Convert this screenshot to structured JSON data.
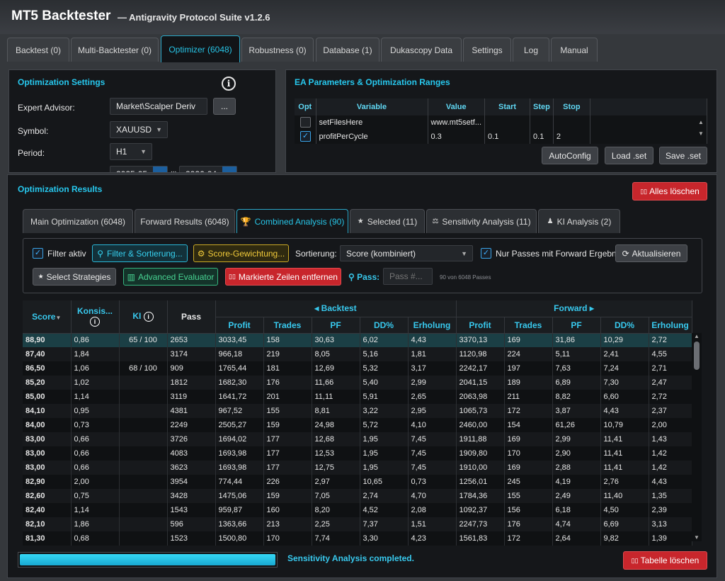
{
  "app": {
    "title": "MT5 Backtester",
    "subtitle": "— Antigravity Protocol Suite v1.2.6"
  },
  "tabs": [
    "Backtest (0)",
    "Multi-Backtester (0)",
    "Optimizer (6048)",
    "Robustness (0)",
    "Database (1)",
    "Dukascopy Data",
    "Settings",
    "Log",
    "Manual"
  ],
  "settings": {
    "title": "Optimization Settings",
    "ea_label": "Expert Advisor:",
    "ea_value": "Market\\Scalper Deriv",
    "browse": "...",
    "symbol_label": "Symbol:",
    "symbol_value": "XAUUSD",
    "period_label": "Period:",
    "period_value": "H1",
    "date_from": "2025-05",
    "date_to": "2026-04"
  },
  "params": {
    "title": "EA Parameters & Optimization Ranges",
    "headers": [
      "Opt",
      "Variable",
      "Value",
      "Start",
      "Step",
      "Stop"
    ],
    "rows": [
      {
        "checked": false,
        "variable": "setFilesHere",
        "value": "www.mt5setf...",
        "start": "",
        "step": "",
        "stop": ""
      },
      {
        "checked": true,
        "variable": "profitPerCycle",
        "value": "0.3",
        "start": "0.1",
        "step": "0.1",
        "stop": "2"
      }
    ],
    "autoconfig": "AutoConfig",
    "load": "Load .set",
    "save": "Save .set"
  },
  "results": {
    "title": "Optimization Results",
    "clear_all": "Alles löschen",
    "subtabs": [
      "Main Optimization (6048)",
      "Forward Results (6048)",
      "Combined Analysis (90)",
      "Selected (11)",
      "Sensitivity Analysis (11)",
      "KI Analysis (2)"
    ],
    "filter_active": "Filter aktiv",
    "filter_sort": "Filter & Sortierung...",
    "score_weight": "Score-Gewichtung...",
    "sort_label": "Sortierung:",
    "sort_value": "Score (kombiniert)",
    "forward_only": "Nur Passes mit Forward Ergebnis",
    "refresh": "Aktualisieren",
    "select_strategies": "Select Strategies",
    "advanced_eval": "Advanced Evaluator",
    "remove_marked": "Markierte Zeilen entfernen",
    "pass_label": "Pass:",
    "pass_placeholder": "Pass #...",
    "count_text": "90 von 6048 Passes",
    "group_backtest": "◂ Backtest",
    "group_forward": "Forward ▸",
    "cols": {
      "score": "Score",
      "konsis": "Konsis...",
      "ki": "KI",
      "pass": "Pass",
      "profit": "Profit",
      "trades": "Trades",
      "pf": "PF",
      "dd": "DD%",
      "erholung": "Erholung"
    },
    "rows": [
      [
        "88,90",
        "0,86",
        "65 / 100",
        "2653",
        "3033,45",
        "158",
        "30,63",
        "6,02",
        "4,43",
        "3370,13",
        "169",
        "31,86",
        "10,29",
        "2,72"
      ],
      [
        "87,40",
        "1,84",
        "",
        "3174",
        "966,18",
        "219",
        "8,05",
        "5,16",
        "1,81",
        "1120,98",
        "224",
        "5,11",
        "2,41",
        "4,55"
      ],
      [
        "86,50",
        "1,06",
        "68 / 100",
        "909",
        "1765,44",
        "181",
        "12,69",
        "5,32",
        "3,17",
        "2242,17",
        "197",
        "7,63",
        "7,24",
        "2,71"
      ],
      [
        "85,20",
        "1,02",
        "",
        "1812",
        "1682,30",
        "176",
        "11,66",
        "5,40",
        "2,99",
        "2041,15",
        "189",
        "6,89",
        "7,30",
        "2,47"
      ],
      [
        "85,00",
        "1,14",
        "",
        "3119",
        "1641,72",
        "201",
        "11,11",
        "5,91",
        "2,65",
        "2063,98",
        "211",
        "8,82",
        "6,60",
        "2,72"
      ],
      [
        "84,10",
        "0,95",
        "",
        "4381",
        "967,52",
        "155",
        "8,81",
        "3,22",
        "2,95",
        "1065,73",
        "172",
        "3,87",
        "4,43",
        "2,37"
      ],
      [
        "84,00",
        "0,73",
        "",
        "2249",
        "2505,27",
        "159",
        "24,98",
        "5,72",
        "4,10",
        "2460,00",
        "154",
        "61,26",
        "10,79",
        "2,00"
      ],
      [
        "83,00",
        "0,66",
        "",
        "3726",
        "1694,02",
        "177",
        "12,68",
        "1,95",
        "7,45",
        "1911,88",
        "169",
        "2,99",
        "11,41",
        "1,43"
      ],
      [
        "83,00",
        "0,66",
        "",
        "4083",
        "1693,98",
        "177",
        "12,53",
        "1,95",
        "7,45",
        "1909,80",
        "170",
        "2,90",
        "11,41",
        "1,42"
      ],
      [
        "83,00",
        "0,66",
        "",
        "3623",
        "1693,98",
        "177",
        "12,75",
        "1,95",
        "7,45",
        "1910,00",
        "169",
        "2,88",
        "11,41",
        "1,42"
      ],
      [
        "82,90",
        "2,00",
        "",
        "3954",
        "774,44",
        "226",
        "2,97",
        "10,65",
        "0,73",
        "1256,01",
        "245",
        "4,19",
        "2,76",
        "4,43"
      ],
      [
        "82,60",
        "0,75",
        "",
        "3428",
        "1475,06",
        "159",
        "7,05",
        "2,74",
        "4,70",
        "1784,36",
        "155",
        "2,49",
        "11,40",
        "1,35"
      ],
      [
        "82,40",
        "1,14",
        "",
        "1543",
        "959,87",
        "160",
        "8,20",
        "4,52",
        "2,08",
        "1092,37",
        "156",
        "6,18",
        "4,50",
        "2,39"
      ],
      [
        "82,10",
        "1,86",
        "",
        "596",
        "1363,66",
        "213",
        "2,25",
        "7,37",
        "1,51",
        "2247,73",
        "176",
        "4,74",
        "6,69",
        "3,13"
      ],
      [
        "81,30",
        "0,68",
        "",
        "1523",
        "1500,80",
        "170",
        "7,74",
        "3,30",
        "4,23",
        "1561,83",
        "172",
        "2,64",
        "9,82",
        "1,39"
      ]
    ],
    "progress": 1.0,
    "status": "Sensitivity Analysis completed.",
    "clear_table": "Tabelle löschen"
  }
}
